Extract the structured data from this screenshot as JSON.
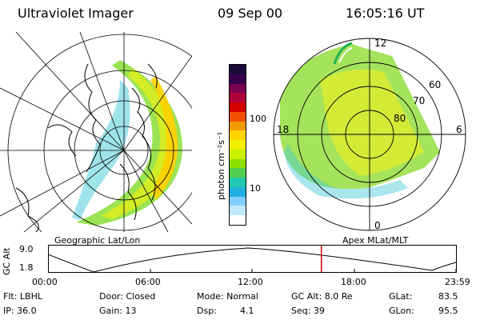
{
  "header": {
    "instrument": "Ultraviolet Imager",
    "date": "09 Sep 00",
    "time": "16:05:16 UT"
  },
  "geographic_panel": {
    "label": "Geographic Lat/Lon"
  },
  "magnetic_panel": {
    "label": "Apex MLat/MLT",
    "mlt_labels": [
      "12",
      "18",
      "6",
      "0"
    ],
    "lat_labels": [
      "60",
      "70",
      "80"
    ]
  },
  "colorbar": {
    "unit_label": "photon cm⁻²s⁻¹",
    "tick_labels": [
      "100",
      "10"
    ],
    "colors": [
      "#1a0a3a",
      "#3a0050",
      "#7a0050",
      "#b0003a",
      "#d40000",
      "#f05000",
      "#f09a00",
      "#ffd200",
      "#f0f000",
      "#c8f000",
      "#8ee000",
      "#50d050",
      "#20c8b0",
      "#20b0e0",
      "#80d0ff",
      "#c0e8ff",
      "#ffffff"
    ]
  },
  "altitude_plot": {
    "axis_label": "GC Alt",
    "y_top": "9.0",
    "y_bottom": "1.8",
    "time_ticks": [
      "00:00",
      "06:00",
      "12:00",
      "18:00",
      "23:59"
    ],
    "current_time_fraction": 0.67,
    "marker_color": "#cc0000"
  },
  "status": {
    "row1": {
      "flt": "Flt: LBHL",
      "door": "Door: Closed",
      "mode": "Mode: Normal",
      "gc_alt": "GC Alt: 8.0 Re",
      "glat_label": "GLat:",
      "glat_value": "83.5"
    },
    "row2": {
      "ip": "IP: 36.0",
      "gain": "Gain: 13",
      "dsp_label": "Dsp:",
      "dsp_value": "4.1",
      "seq": "Seq: 39",
      "glon_label": "GLon:",
      "glon_value": "95.5"
    }
  }
}
